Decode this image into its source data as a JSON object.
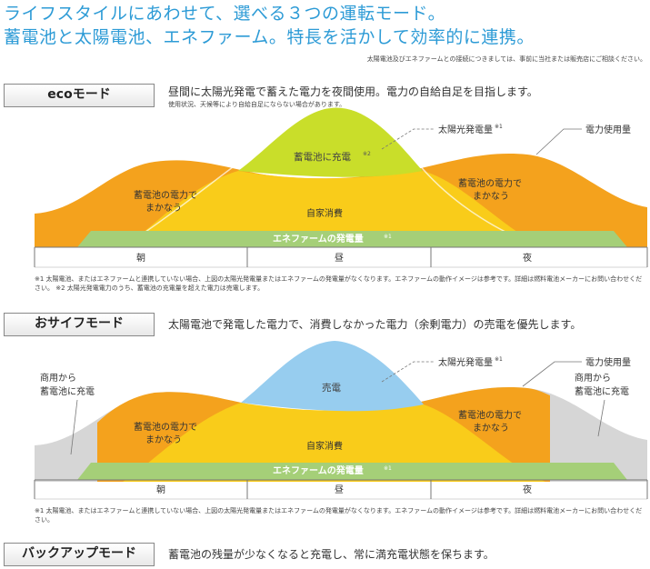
{
  "header": {
    "line1": "ライフスタイルにあわせて、選べる３つの運転モード。",
    "line2": "蓄電池と太陽電池、エネファーム。特長を活かして効率的に連携。",
    "note": "太陽電池及びエネファームとの接続につきましては、事前に当社または販売店にご相談ください。"
  },
  "eco": {
    "label": "ecoモード",
    "desc": "昼間に太陽光発電で蓄えた電力を夜間使用。電力の自給自足を目指します。",
    "subdesc": "使用状況、天候等により自給自足にならない場合があります。",
    "callout_solar": "太陽光発電量",
    "callout_solar_sup": "※1",
    "callout_usage": "電力使用量",
    "charge_label": "蓄電池に充電",
    "charge_sup": "※2",
    "battery_left_1": "蓄電池の電力で",
    "battery_left_2": "まかなう",
    "battery_right_1": "蓄電池の電力で",
    "battery_right_2": "まかなう",
    "self_use": "自家消費",
    "enefarm": "エネファームの発電量",
    "enefarm_sup": "※1",
    "time_morning": "朝",
    "time_noon": "昼",
    "time_night": "夜",
    "footnote": "※1 太陽電池、またはエネファームと連携していない場合、上図の太陽光発電量またはエネファームの発電量がなくなります。エネファームの動作イメージは参考です。詳細は燃料電池メーカーにお問い合わせください。 ※2 太陽光発電電力のうち、蓄電池の充電量を超えた電力は売電します。"
  },
  "saifu": {
    "label": "おサイフモード",
    "desc": "太陽電池で発電した電力で、消費しなかった電力（余剰電力）の売電を優先します。",
    "callout_solar": "太陽光発電量",
    "callout_solar_sup": "※1",
    "callout_usage": "電力使用量",
    "grid_left_1": "商用から",
    "grid_left_2": "蓄電池に充電",
    "grid_right_1": "商用から",
    "grid_right_2": "蓄電池に充電",
    "sell_label": "売電",
    "battery_left_1": "蓄電池の電力で",
    "battery_left_2": "まかなう",
    "battery_right_1": "蓄電池の電力で",
    "battery_right_2": "まかなう",
    "self_use": "自家消費",
    "enefarm": "エネファームの発電量",
    "enefarm_sup": "※1",
    "time_morning": "朝",
    "time_noon": "昼",
    "time_night": "夜",
    "footnote": "※1 太陽電池、またはエネファームと連携していない場合、上図の太陽光発電量またはエネファームの発電量がなくなります。エネファームの動作イメージは参考です。詳細は燃料電池メーカーにお問い合わせください。"
  },
  "backup": {
    "label": "バックアップモード",
    "desc": "蓄電池の残量が少なくなると充電し、常に満充電状態を保ちます。"
  },
  "colors": {
    "orange": "#f4a21d",
    "yellow": "#f9cc1a",
    "lime": "#c9de2a",
    "green": "#a5cf78",
    "sky": "#97cdef",
    "gray": "#d6d6d6"
  }
}
